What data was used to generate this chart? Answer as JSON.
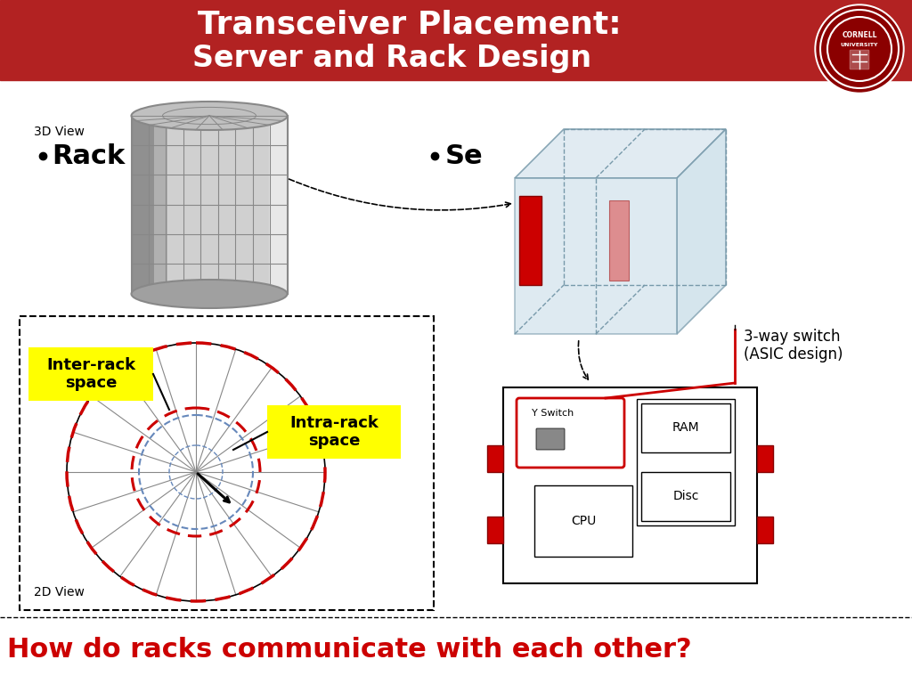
{
  "title_line1": "Transceiver Placement:",
  "title_line2": "Server and Rack Design",
  "title_bg_color": "#B22222",
  "title_text_color": "#FFFFFF",
  "question_text": "How do racks communicate with each other?",
  "question_color": "#CC0000",
  "rack_label": "Rack",
  "server_label": "Se",
  "view_3d": "3D View",
  "view_2d": "2D View",
  "inter_rack_label": "Inter-rack\nspace",
  "intra_rack_label": "Intra-rack\nspace",
  "switch_label": "3-way switch\n(ASIC design)",
  "yellow_bg": "#FFFF00",
  "red_color": "#CC0000",
  "dark_red": "#8B0000",
  "light_blue": "#C8DDE8",
  "lighter_blue": "#DCE8F0"
}
